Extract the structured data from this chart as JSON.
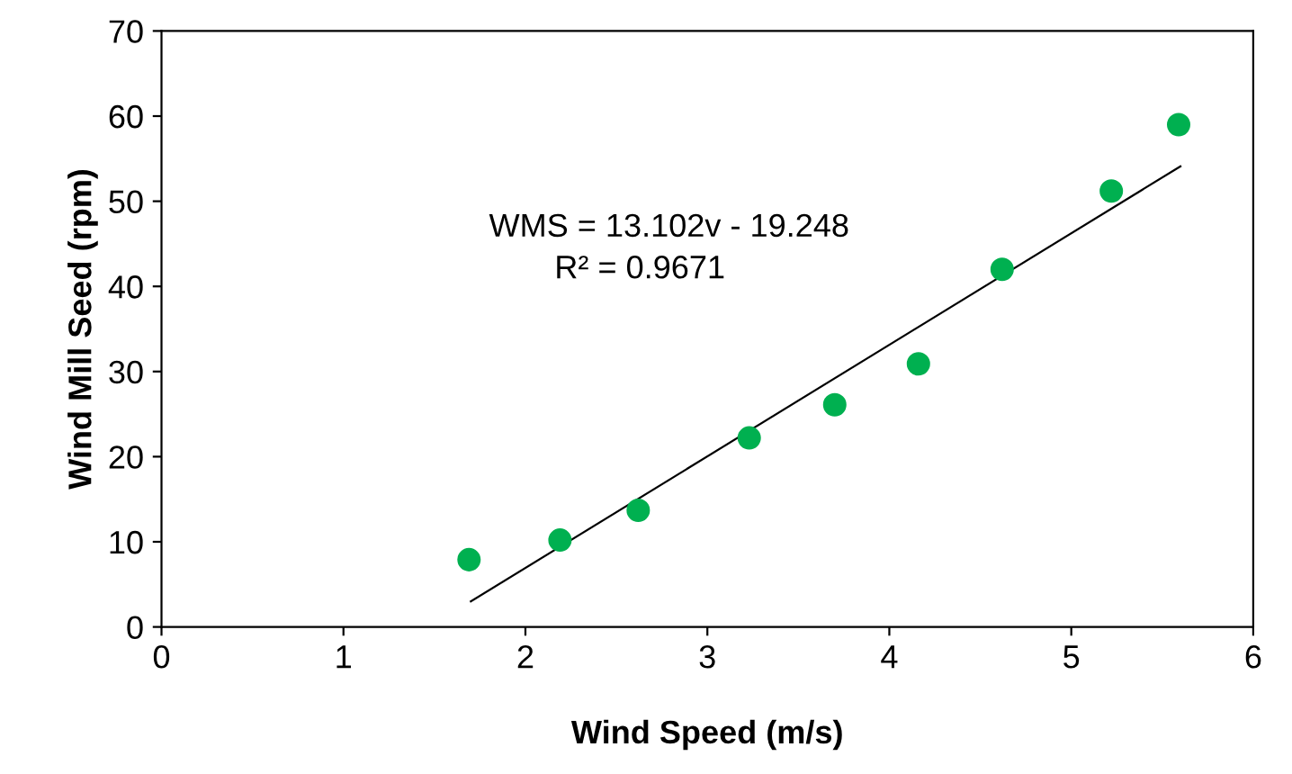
{
  "chart_data": {
    "type": "scatter",
    "xlabel": "Wind Speed (m/s)",
    "ylabel": "Wind Mill Seed (rpm)",
    "x": [
      1.69,
      2.19,
      2.62,
      3.23,
      3.7,
      4.16,
      4.62,
      5.22,
      5.59
    ],
    "series": [
      {
        "color": "#00b050",
        "marker": "circle",
        "values": [
          7.9,
          10.2,
          13.7,
          22.2,
          26.1,
          30.9,
          42.0,
          51.2,
          59.0
        ]
      },
      {
        "type": "line",
        "marker": "none",
        "color": "#000000",
        "x": [
          1.7,
          5.6
        ],
        "values": [
          3.0,
          54.1
        ]
      }
    ],
    "grid": false,
    "legend": false,
    "xlim": [
      0,
      6
    ],
    "xticks": [
      0,
      1,
      2,
      3,
      4,
      5,
      6
    ],
    "ylim": [
      0,
      70
    ],
    "yticks": [
      0,
      10,
      20,
      30,
      40,
      50,
      60,
      70
    ],
    "annotations": [
      "WMS = 13.102v - 19.248",
      "R² = 0.9671"
    ]
  }
}
